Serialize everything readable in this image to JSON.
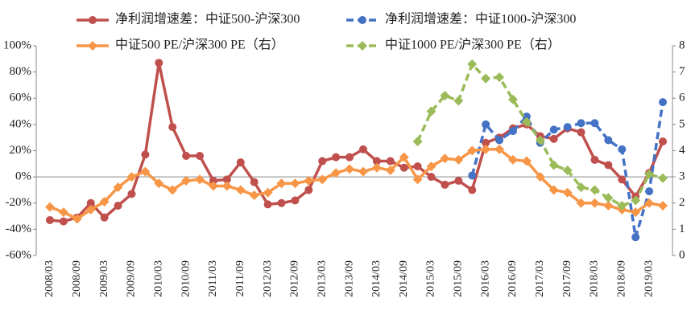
{
  "chart_data": {
    "type": "line",
    "categories": [
      "2008/03",
      null,
      "2008/09",
      null,
      "2009/03",
      null,
      "2009/09",
      null,
      "2010/03",
      null,
      "2010/09",
      null,
      "2011/03",
      null,
      "2011/09",
      null,
      "2012/03",
      null,
      "2012/09",
      null,
      "2013/03",
      null,
      "2013/09",
      null,
      "2014/03",
      null,
      "2014/09",
      null,
      "2015/03",
      null,
      "2015/09",
      null,
      "2016/03",
      null,
      "2016/09",
      null,
      "2017/03",
      null,
      "2017/09",
      null,
      "2018/03",
      null,
      "2018/09",
      null,
      "2019/03",
      null
    ],
    "series": [
      {
        "name": "净利润增速差：中证500-沪深300",
        "color": "#c0504d",
        "marker": "circle",
        "dashed": false,
        "values": [
          -33,
          -34,
          -31,
          -20,
          -31,
          -22,
          -13,
          17,
          87,
          38,
          16,
          16,
          -3,
          -2,
          11,
          -4,
          -21,
          -20,
          -18,
          -10,
          12,
          15,
          15,
          21,
          12,
          12,
          7,
          8,
          0,
          -6,
          -3,
          -10,
          26,
          30,
          37,
          40,
          31,
          29,
          37,
          34,
          13,
          9,
          -2,
          -15,
          3,
          27
        ]
      },
      {
        "name": "净利润增速差：中证1000-沪深300",
        "color": "#4472c4",
        "marker": "circle",
        "dashed": true,
        "values": [
          null,
          null,
          null,
          null,
          null,
          null,
          null,
          null,
          null,
          null,
          null,
          null,
          null,
          null,
          null,
          null,
          null,
          null,
          null,
          null,
          null,
          null,
          null,
          null,
          null,
          null,
          null,
          null,
          null,
          null,
          null,
          1,
          40,
          28,
          35,
          46,
          26,
          36,
          38,
          41,
          41,
          28,
          21,
          -46,
          -11,
          57
        ]
      },
      {
        "name": "中证500 PE/沪深300 PE（右）",
        "color": "#f79646",
        "marker": "diamond",
        "dashed": false,
        "axis": "y2",
        "values": [
          1.85,
          1.65,
          1.4,
          1.75,
          2.05,
          2.6,
          3.0,
          3.2,
          2.75,
          2.5,
          2.85,
          2.9,
          2.65,
          2.65,
          2.5,
          2.3,
          2.4,
          2.75,
          2.75,
          2.85,
          2.9,
          3.15,
          3.3,
          3.2,
          3.35,
          3.25,
          3.75,
          2.9,
          3.4,
          3.7,
          3.65,
          4.0,
          4.05,
          4.05,
          3.65,
          3.6,
          3.0,
          2.5,
          2.4,
          2.0,
          2.0,
          1.9,
          1.75,
          1.65,
          2.0,
          1.9
        ]
      },
      {
        "name": "中证1000 PE/沪深300 PE（右）",
        "color": "#9bbb59",
        "marker": "diamond",
        "dashed": true,
        "axis": "y2",
        "values": [
          null,
          null,
          null,
          null,
          null,
          null,
          null,
          null,
          null,
          null,
          null,
          null,
          null,
          null,
          null,
          null,
          null,
          null,
          null,
          null,
          null,
          null,
          null,
          null,
          null,
          null,
          null,
          4.35,
          5.5,
          6.1,
          5.9,
          7.3,
          6.75,
          6.8,
          5.95,
          5.1,
          4.4,
          3.45,
          3.25,
          2.6,
          2.5,
          2.2,
          1.9,
          2.1,
          3.1,
          2.95
        ]
      }
    ],
    "ylim": [
      -60,
      100
    ],
    "yticks": [
      {
        "value": -60,
        "label": "-60%"
      },
      {
        "value": -40,
        "label": "-40%"
      },
      {
        "value": -20,
        "label": "-20%"
      },
      {
        "value": 0,
        "label": "0%"
      },
      {
        "value": 20,
        "label": "20%"
      },
      {
        "value": 40,
        "label": "40%"
      },
      {
        "value": 60,
        "label": "60%"
      },
      {
        "value": 80,
        "label": "80%"
      },
      {
        "value": 100,
        "label": "100%"
      }
    ],
    "y2lim": [
      0,
      8
    ],
    "y2ticks": [
      0,
      1,
      2,
      3,
      4,
      5,
      6,
      7,
      8
    ],
    "grid": false,
    "legend": "top"
  }
}
